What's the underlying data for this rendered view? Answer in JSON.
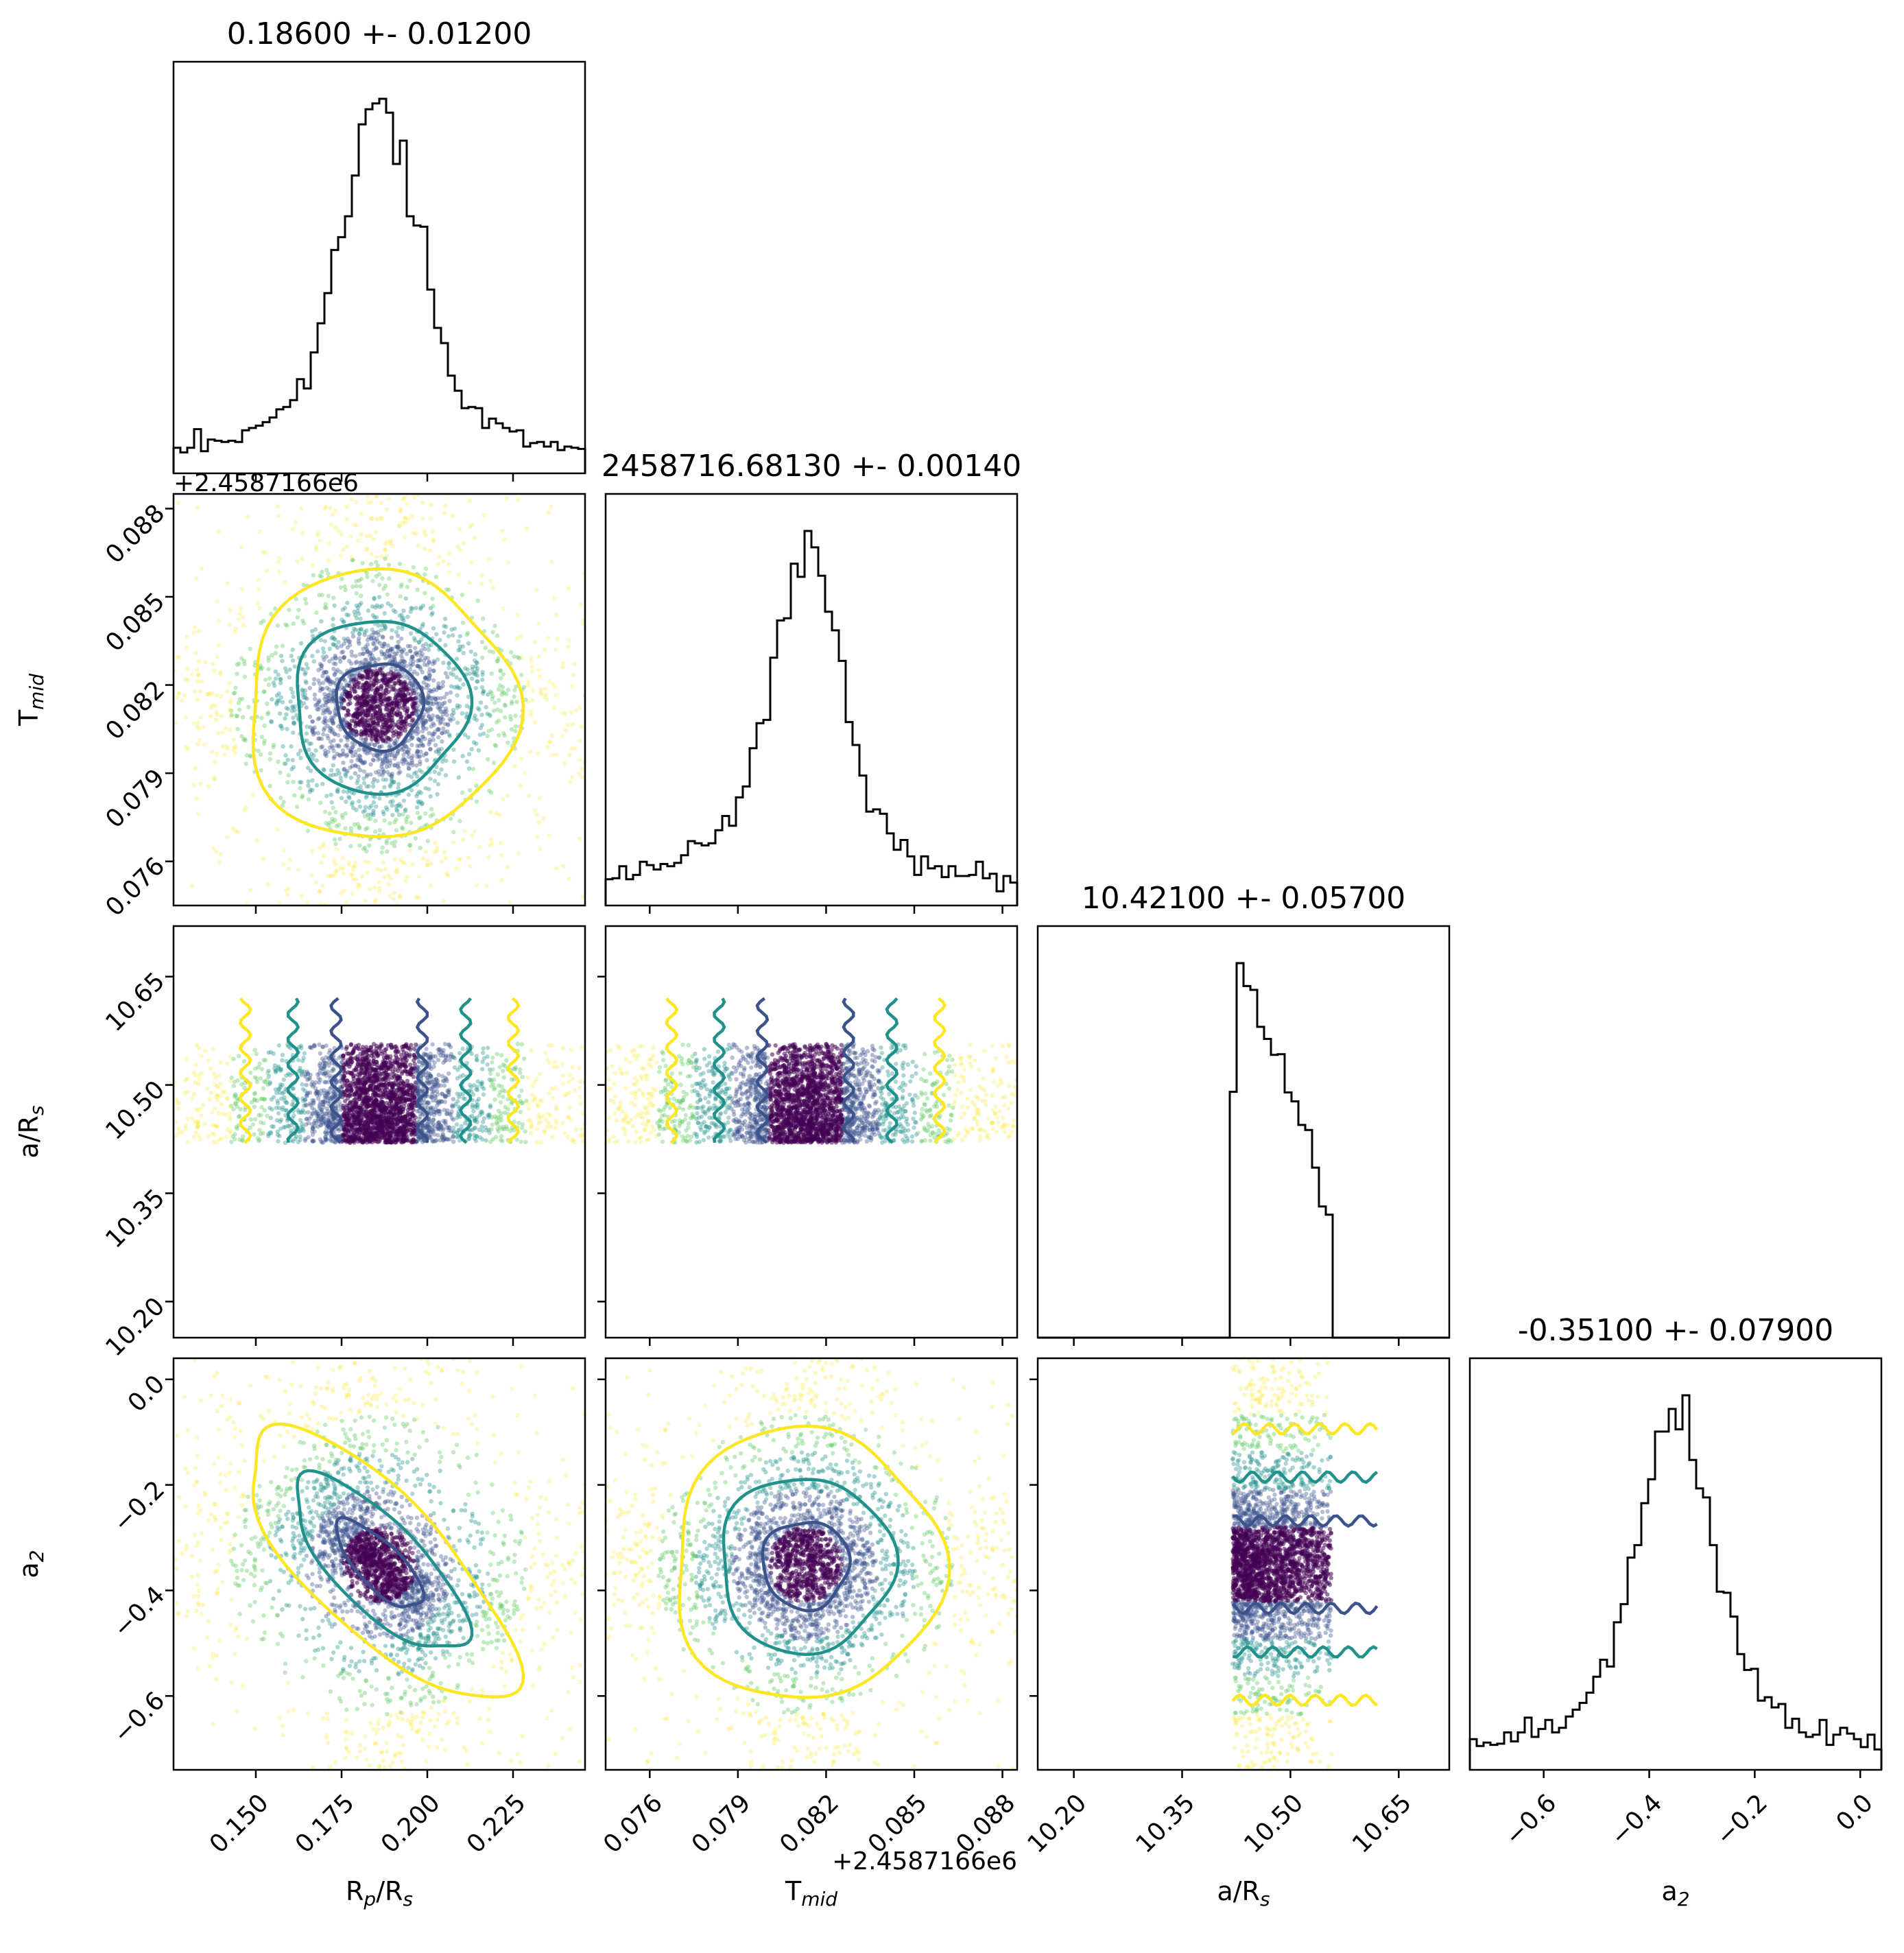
{
  "chart_data": {
    "type": "corner",
    "parameters": [
      {
        "name": "R_p/R_s",
        "label_main": "R",
        "label_sub": "p",
        "label_rest": "/R",
        "label_sub2": "s",
        "title": "0.18600 +- 0.01200",
        "range": [
          0.126,
          0.246
        ],
        "ticks": [
          0.15,
          0.175,
          0.2,
          0.225
        ],
        "tick_labels": [
          "0.150",
          "0.175",
          "0.200",
          "0.225"
        ],
        "median": 0.186,
        "sigma": 0.012
      },
      {
        "name": "T_mid",
        "label_main": "T",
        "label_sub": "mid",
        "title": "2458716.68130 +- 0.00140",
        "offset_text": "+2.4587166e6",
        "range": [
          0.0745,
          0.0885
        ],
        "ticks": [
          0.076,
          0.079,
          0.082,
          0.085,
          0.088
        ],
        "tick_labels": [
          "0.076",
          "0.079",
          "0.082",
          "0.085",
          "0.088"
        ],
        "median": 0.0813,
        "sigma": 0.0014
      },
      {
        "name": "a/R_s",
        "label_main": "a/R",
        "label_sub": "s",
        "title": "10.42100 +- 0.05700",
        "range": [
          10.15,
          10.72
        ],
        "ticks": [
          10.2,
          10.35,
          10.5,
          10.65
        ],
        "tick_labels": [
          "10.20",
          "10.35",
          "10.50",
          "10.65"
        ],
        "support": [
          10.42,
          10.62
        ]
      },
      {
        "name": "a_2",
        "label_main": "a",
        "label_sub": "2",
        "title": "-0.35100 +- 0.07900",
        "range": [
          -0.74,
          0.04
        ],
        "ticks": [
          -0.6,
          -0.4,
          -0.2,
          0.0
        ],
        "tick_labels": [
          "−0.6",
          "−0.4",
          "−0.2",
          "0.0"
        ],
        "median": -0.351,
        "sigma": 0.079
      }
    ],
    "contour_colors": [
      "#3b528b",
      "#21918c",
      "#fde725"
    ],
    "point_colormap": [
      "#440154",
      "#3b528b",
      "#21918c",
      "#5ec962",
      "#fde725"
    ]
  }
}
